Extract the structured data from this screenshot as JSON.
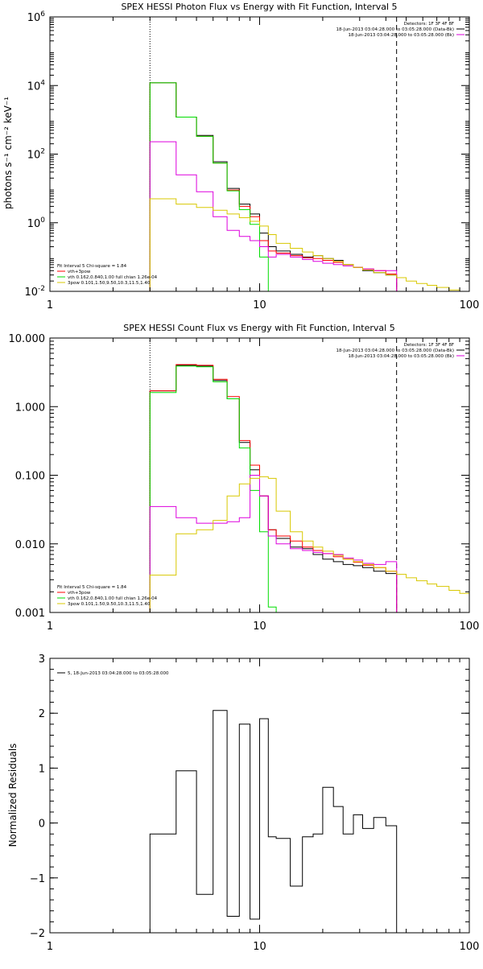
{
  "colors": {
    "black": "#000000",
    "red": "#ff0000",
    "green": "#00dd00",
    "magenta": "#dd00dd",
    "yellow": "#d8c800"
  },
  "chart_data": [
    {
      "type": "line",
      "title": "SPEX HESSI Photon Flux vs Energy with Fit Function, Interval 5",
      "ylabel": "photons s⁻¹ cm⁻² keV⁻¹",
      "xlabel": "",
      "x_scale": "log",
      "y_scale": "log",
      "xlim": [
        1,
        100
      ],
      "ylim": [
        0.01,
        1000000
      ],
      "grid": false,
      "xticks": [
        "1",
        "10",
        "100"
      ],
      "yticks": [
        {
          "value": 0.01,
          "base": "10",
          "exp": "-2"
        },
        {
          "value": 1,
          "base": "10",
          "exp": "0"
        },
        {
          "value": 100,
          "base": "10",
          "exp": "2"
        },
        {
          "value": 10000,
          "base": "10",
          "exp": "4"
        },
        {
          "value": 1000000,
          "base": "10",
          "exp": "6"
        }
      ],
      "vlines": [
        {
          "x": 3,
          "style": "dotted"
        },
        {
          "x": 45,
          "style": "dashed"
        }
      ],
      "legend_top_right": [
        {
          "text": "Detectors: 1F 3F 4F 8F",
          "color": ""
        },
        {
          "text": "18-Jun-2013 03:04:28.000 to 03:05:28.000 (Data-Bk)",
          "color": "black"
        },
        {
          "text": "18-Jun-2013 03:04:28.000 to 03:05:28.000 (Bk)",
          "color": "magenta"
        }
      ],
      "legend_bottom_left": [
        {
          "text": "Fit Interval 5   Chi-square = 1.84",
          "color": ""
        },
        {
          "text": "vth+3pow",
          "color": "red"
        },
        {
          "text": "vth 0.162,0.840,1.00  full chian 1.26e-04",
          "color": "green"
        },
        {
          "text": "3pow 0.101,1.50,9.50,10.3,11.5,1.40",
          "color": "yellow"
        }
      ],
      "edges": [
        3,
        4,
        5,
        6,
        7,
        8,
        9,
        10,
        11,
        12,
        14,
        16,
        18,
        20,
        22.5,
        25,
        28,
        31,
        35,
        40,
        45,
        50,
        56,
        63,
        70,
        80,
        90,
        100
      ],
      "series": [
        {
          "name": "Data-Bk",
          "color": "black",
          "values": [
            12000,
            1200,
            350,
            60,
            10,
            3.5,
            1.8,
            0.5,
            0.2,
            0.15,
            0.12,
            0.1,
            0.11,
            0.09,
            0.08,
            0.06,
            0.05,
            0.04,
            0.035,
            0.03,
            null,
            null,
            null,
            null,
            null,
            null,
            null
          ]
        },
        {
          "name": "vth+3pow",
          "color": "red",
          "values": [
            12000,
            1200,
            330,
            55,
            9,
            3,
            1.5,
            0.3,
            0.15,
            0.13,
            0.11,
            0.095,
            0.09,
            0.08,
            0.07,
            0.06,
            0.05,
            0.045,
            0.04,
            0.032,
            null,
            null,
            null,
            null,
            null,
            null,
            null
          ]
        },
        {
          "name": "vth",
          "color": "green",
          "values": [
            12000,
            1200,
            330,
            55,
            8.5,
            2.4,
            0.9,
            0.1,
            0.01,
            null,
            null,
            null,
            null,
            null,
            null,
            null,
            null,
            null,
            null,
            null,
            null,
            null,
            null,
            null,
            null,
            null,
            null
          ]
        },
        {
          "name": "Bk",
          "color": "magenta",
          "values": [
            230,
            25,
            8,
            1.5,
            0.6,
            0.4,
            0.3,
            0.2,
            0.1,
            0.12,
            0.1,
            0.085,
            0.075,
            0.066,
            0.06,
            0.055,
            0.05,
            0.045,
            0.04,
            0.04,
            null,
            null,
            null,
            null,
            null,
            null,
            null
          ]
        },
        {
          "name": "3pow",
          "color": "yellow",
          "values": [
            5,
            3.5,
            2.8,
            2.3,
            1.8,
            1.4,
            1.1,
            0.8,
            0.45,
            0.25,
            0.18,
            0.14,
            0.11,
            0.09,
            0.075,
            0.06,
            0.05,
            0.042,
            0.035,
            0.03,
            0.025,
            0.02,
            0.017,
            0.015,
            0.013,
            0.011,
            0.01
          ]
        }
      ]
    },
    {
      "type": "line",
      "title": "SPEX HESSI Count Flux vs Energy with Fit Function, Interval 5",
      "ylabel": "",
      "xlabel": "",
      "x_scale": "log",
      "y_scale": "log",
      "xlim": [
        1,
        100
      ],
      "ylim": [
        0.001,
        10
      ],
      "grid": false,
      "xticks": [
        "1",
        "10",
        "100"
      ],
      "yticks": [
        {
          "value": 0.001,
          "label": "0.001"
        },
        {
          "value": 0.01,
          "label": "0.010"
        },
        {
          "value": 0.1,
          "label": "0.100"
        },
        {
          "value": 1,
          "label": "1.000"
        },
        {
          "value": 10,
          "label": "10.000"
        }
      ],
      "vlines": [
        {
          "x": 3,
          "style": "dotted"
        },
        {
          "x": 45,
          "style": "dashed"
        }
      ],
      "legend_top_right": [
        {
          "text": "Detectors: 1F 3F 4F 8F",
          "color": ""
        },
        {
          "text": "18-Jun-2013 03:04:28.000 to 03:05:28.000 (Data-Bk)",
          "color": "black"
        },
        {
          "text": "18-Jun-2013 03:04:28.000 to 03:05:28.000 (Bk)",
          "color": "magenta"
        }
      ],
      "legend_bottom_left": [
        {
          "text": "Fit Interval 5   Chi-square = 1.84",
          "color": ""
        },
        {
          "text": "vth+3pow",
          "color": "red"
        },
        {
          "text": "vth 0.162,0.840,1.00  full chian 1.26e-04",
          "color": "green"
        },
        {
          "text": "3pow 0.101,1.50,9.50,10.3,11.5,1.40",
          "color": "yellow"
        }
      ],
      "edges": [
        3,
        4,
        5,
        6,
        7,
        8,
        9,
        10,
        11,
        12,
        14,
        16,
        18,
        20,
        22.5,
        25,
        28,
        31,
        35,
        40,
        45,
        50,
        56,
        63,
        70,
        80,
        90,
        100
      ],
      "series": [
        {
          "name": "Data-Bk",
          "color": "black",
          "values": [
            1.7,
            4.0,
            3.9,
            2.4,
            1.3,
            0.3,
            0.12,
            0.05,
            0.016,
            0.012,
            0.009,
            0.0085,
            0.007,
            0.006,
            0.0055,
            0.005,
            0.0048,
            0.0045,
            0.004,
            0.0037,
            null,
            null,
            null,
            null,
            null,
            null,
            null
          ]
        },
        {
          "name": "vth+3pow",
          "color": "red",
          "values": [
            1.7,
            4.1,
            4.0,
            2.5,
            1.4,
            0.32,
            0.14,
            0.05,
            0.016,
            0.013,
            0.011,
            0.009,
            0.008,
            0.0072,
            0.0065,
            0.006,
            0.0054,
            0.0049,
            0.0045,
            0.004,
            null,
            null,
            null,
            null,
            null,
            null,
            null
          ]
        },
        {
          "name": "vth",
          "color": "green",
          "values": [
            1.6,
            3.9,
            3.8,
            2.3,
            1.3,
            0.25,
            0.06,
            0.015,
            0.0012,
            null,
            null,
            null,
            null,
            null,
            null,
            null,
            null,
            null,
            null,
            null,
            null,
            null,
            null,
            null,
            null,
            null,
            null
          ]
        },
        {
          "name": "Bk",
          "color": "magenta",
          "values": [
            0.035,
            0.024,
            0.02,
            0.02,
            0.021,
            0.024,
            0.1,
            0.05,
            0.013,
            0.01,
            0.0085,
            0.008,
            0.0075,
            0.0072,
            0.007,
            0.0062,
            0.0058,
            0.0052,
            0.005,
            0.0055,
            null,
            null,
            null,
            null,
            null,
            null,
            null
          ]
        },
        {
          "name": "3pow",
          "color": "yellow",
          "values": [
            0.0035,
            0.014,
            0.016,
            0.022,
            0.05,
            0.075,
            0.09,
            0.095,
            0.09,
            0.03,
            0.015,
            0.011,
            0.009,
            0.0078,
            0.0068,
            0.006,
            0.0055,
            0.005,
            0.0045,
            0.004,
            0.0036,
            0.0032,
            0.0029,
            0.0026,
            0.0024,
            0.0021,
            0.0019
          ]
        }
      ]
    },
    {
      "type": "line",
      "title": "",
      "ylabel": "Normalized Residuals",
      "xlabel": "",
      "x_scale": "log",
      "y_scale": "linear",
      "xlim": [
        1,
        100
      ],
      "ylim": [
        -2,
        3
      ],
      "grid": false,
      "xticks": [
        "1",
        "10",
        "100"
      ],
      "yticks": [
        {
          "value": -2,
          "label": "−2"
        },
        {
          "value": -1,
          "label": "−1"
        },
        {
          "value": 0,
          "label": "0"
        },
        {
          "value": 1,
          "label": "1"
        },
        {
          "value": 2,
          "label": "2"
        },
        {
          "value": 3,
          "label": "3"
        }
      ],
      "legend_top_left": [
        {
          "text": "5, 18-Jun-2013 03:04:28.000 to 03:05:28.000",
          "color": "black"
        }
      ],
      "edges": [
        3,
        4,
        5,
        6,
        7,
        8,
        9,
        10,
        11,
        12,
        14,
        16,
        18,
        20,
        22.5,
        25,
        28,
        31,
        35,
        40,
        45
      ],
      "series": [
        {
          "name": "5",
          "color": "black",
          "values": [
            -0.2,
            0.95,
            -1.3,
            2.05,
            -1.7,
            1.8,
            -1.75,
            1.9,
            -0.25,
            -0.28,
            -1.15,
            -0.25,
            -0.2,
            0.65,
            0.3,
            -0.2,
            0.15,
            -0.1,
            0.1,
            -0.05
          ]
        }
      ]
    }
  ]
}
